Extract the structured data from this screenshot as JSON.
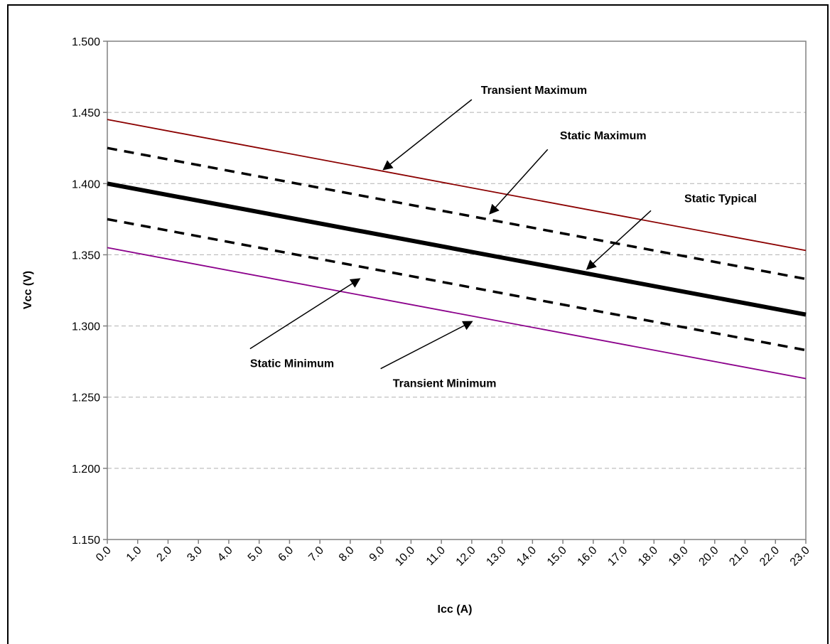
{
  "chart_data": {
    "type": "line",
    "title": "",
    "xlabel": "Icc (A)",
    "ylabel": "Vcc (V)",
    "xlim": [
      0,
      23
    ],
    "ylim": [
      1.15,
      1.5
    ],
    "x_ticks": [
      "0.0",
      "1.0",
      "2.0",
      "3.0",
      "4.0",
      "5.0",
      "6.0",
      "7.0",
      "8.0",
      "9.0",
      "10.0",
      "11.0",
      "12.0",
      "13.0",
      "14.0",
      "15.0",
      "16.0",
      "17.0",
      "18.0",
      "19.0",
      "20.0",
      "21.0",
      "22.0",
      "23.0"
    ],
    "y_ticks": [
      "1.150",
      "1.200",
      "1.250",
      "1.300",
      "1.350",
      "1.400",
      "1.450",
      "1.500"
    ],
    "grid": "horizontal dashed",
    "legend": "none",
    "x": [
      0,
      23
    ],
    "series": [
      {
        "name": "Transient Maximum",
        "values": [
          1.445,
          1.353
        ],
        "color": "#8b0000",
        "style": "solid-thin"
      },
      {
        "name": "Static Maximum",
        "values": [
          1.425,
          1.333
        ],
        "color": "#000000",
        "style": "dashed"
      },
      {
        "name": "Static Typical",
        "values": [
          1.4,
          1.308
        ],
        "color": "#000000",
        "style": "solid-thick"
      },
      {
        "name": "Static Minimum",
        "values": [
          1.375,
          1.283
        ],
        "color": "#000000",
        "style": "dashed"
      },
      {
        "name": "Transient Minimum",
        "values": [
          1.355,
          1.263
        ],
        "color": "#8b008b",
        "style": "solid-thin"
      }
    ],
    "annotations": [
      {
        "text": "Transient Maximum",
        "label_at": [
          12.3,
          1.466
        ],
        "arrow_from": [
          12.0,
          1.459
        ],
        "arrow_to": [
          9.1,
          1.41
        ]
      },
      {
        "text": "Static Maximum",
        "label_at": [
          14.9,
          1.434
        ],
        "arrow_from": [
          14.5,
          1.424
        ],
        "arrow_to": [
          12.6,
          1.379
        ]
      },
      {
        "text": "Static Typical",
        "label_at": [
          19.0,
          1.39
        ],
        "arrow_from": [
          17.9,
          1.381
        ],
        "arrow_to": [
          15.8,
          1.34
        ]
      },
      {
        "text": "Static Minimum",
        "label_at": [
          4.7,
          1.274
        ],
        "arrow_from": [
          4.7,
          1.284
        ],
        "arrow_to": [
          8.3,
          1.333
        ]
      },
      {
        "text": "Transient Minimum",
        "label_at": [
          9.4,
          1.26
        ],
        "arrow_from": [
          9.0,
          1.27
        ],
        "arrow_to": [
          12.0,
          1.303
        ]
      }
    ]
  }
}
